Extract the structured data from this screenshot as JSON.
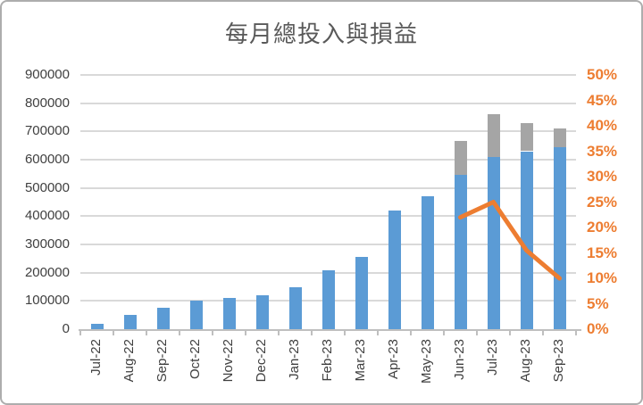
{
  "chart_data": {
    "type": "combo-bar-line",
    "title": "每月總投入與損益",
    "categories": [
      "Jul-22",
      "Aug-22",
      "Sep-22",
      "Oct-22",
      "Nov-22",
      "Dec-22",
      "Jan-23",
      "Feb-23",
      "Mar-23",
      "Apr-23",
      "May-23",
      "Jun-23",
      "Jul-23",
      "Aug-23",
      "Sep-23"
    ],
    "series": [
      {
        "name": "blue_bars",
        "type": "bar",
        "axis": "left",
        "color": "#5B9BD5",
        "values": [
          20000,
          50000,
          75000,
          100000,
          110000,
          120000,
          150000,
          210000,
          255000,
          420000,
          470000,
          545000,
          610000,
          630000,
          645000
        ]
      },
      {
        "name": "gray_bars_stacked",
        "type": "bar-stacked-on-blue",
        "axis": "left",
        "color": "#A5A5A5",
        "values": [
          0,
          0,
          0,
          0,
          0,
          0,
          0,
          0,
          0,
          0,
          0,
          120000,
          150000,
          100000,
          65000
        ]
      },
      {
        "name": "percent_line",
        "type": "line",
        "axis": "right",
        "color": "#ED7D31",
        "values": [
          null,
          null,
          null,
          null,
          null,
          null,
          null,
          null,
          null,
          null,
          null,
          22,
          25,
          15.5,
          10
        ]
      }
    ],
    "left_axis": {
      "min": 0,
      "max": 900000,
      "step": 100000,
      "tick_labels": [
        "0",
        "100000",
        "200000",
        "300000",
        "400000",
        "500000",
        "600000",
        "700000",
        "800000",
        "900000"
      ],
      "label_color": "#404040"
    },
    "right_axis": {
      "min": 0,
      "max": 50,
      "step": 5,
      "tick_labels": [
        "0%",
        "5%",
        "10%",
        "15%",
        "20%",
        "25%",
        "30%",
        "35%",
        "40%",
        "45%",
        "50%"
      ],
      "label_color": "#ED7D31"
    },
    "grid": true,
    "legend": "none",
    "colors": {
      "bar_blue": "#5B9BD5",
      "bar_gray": "#A5A5A5",
      "line_orange": "#ED7D31",
      "gridline": "#D9D9D9",
      "axis_line": "#BFBFBF",
      "title_color": "#595959"
    }
  }
}
